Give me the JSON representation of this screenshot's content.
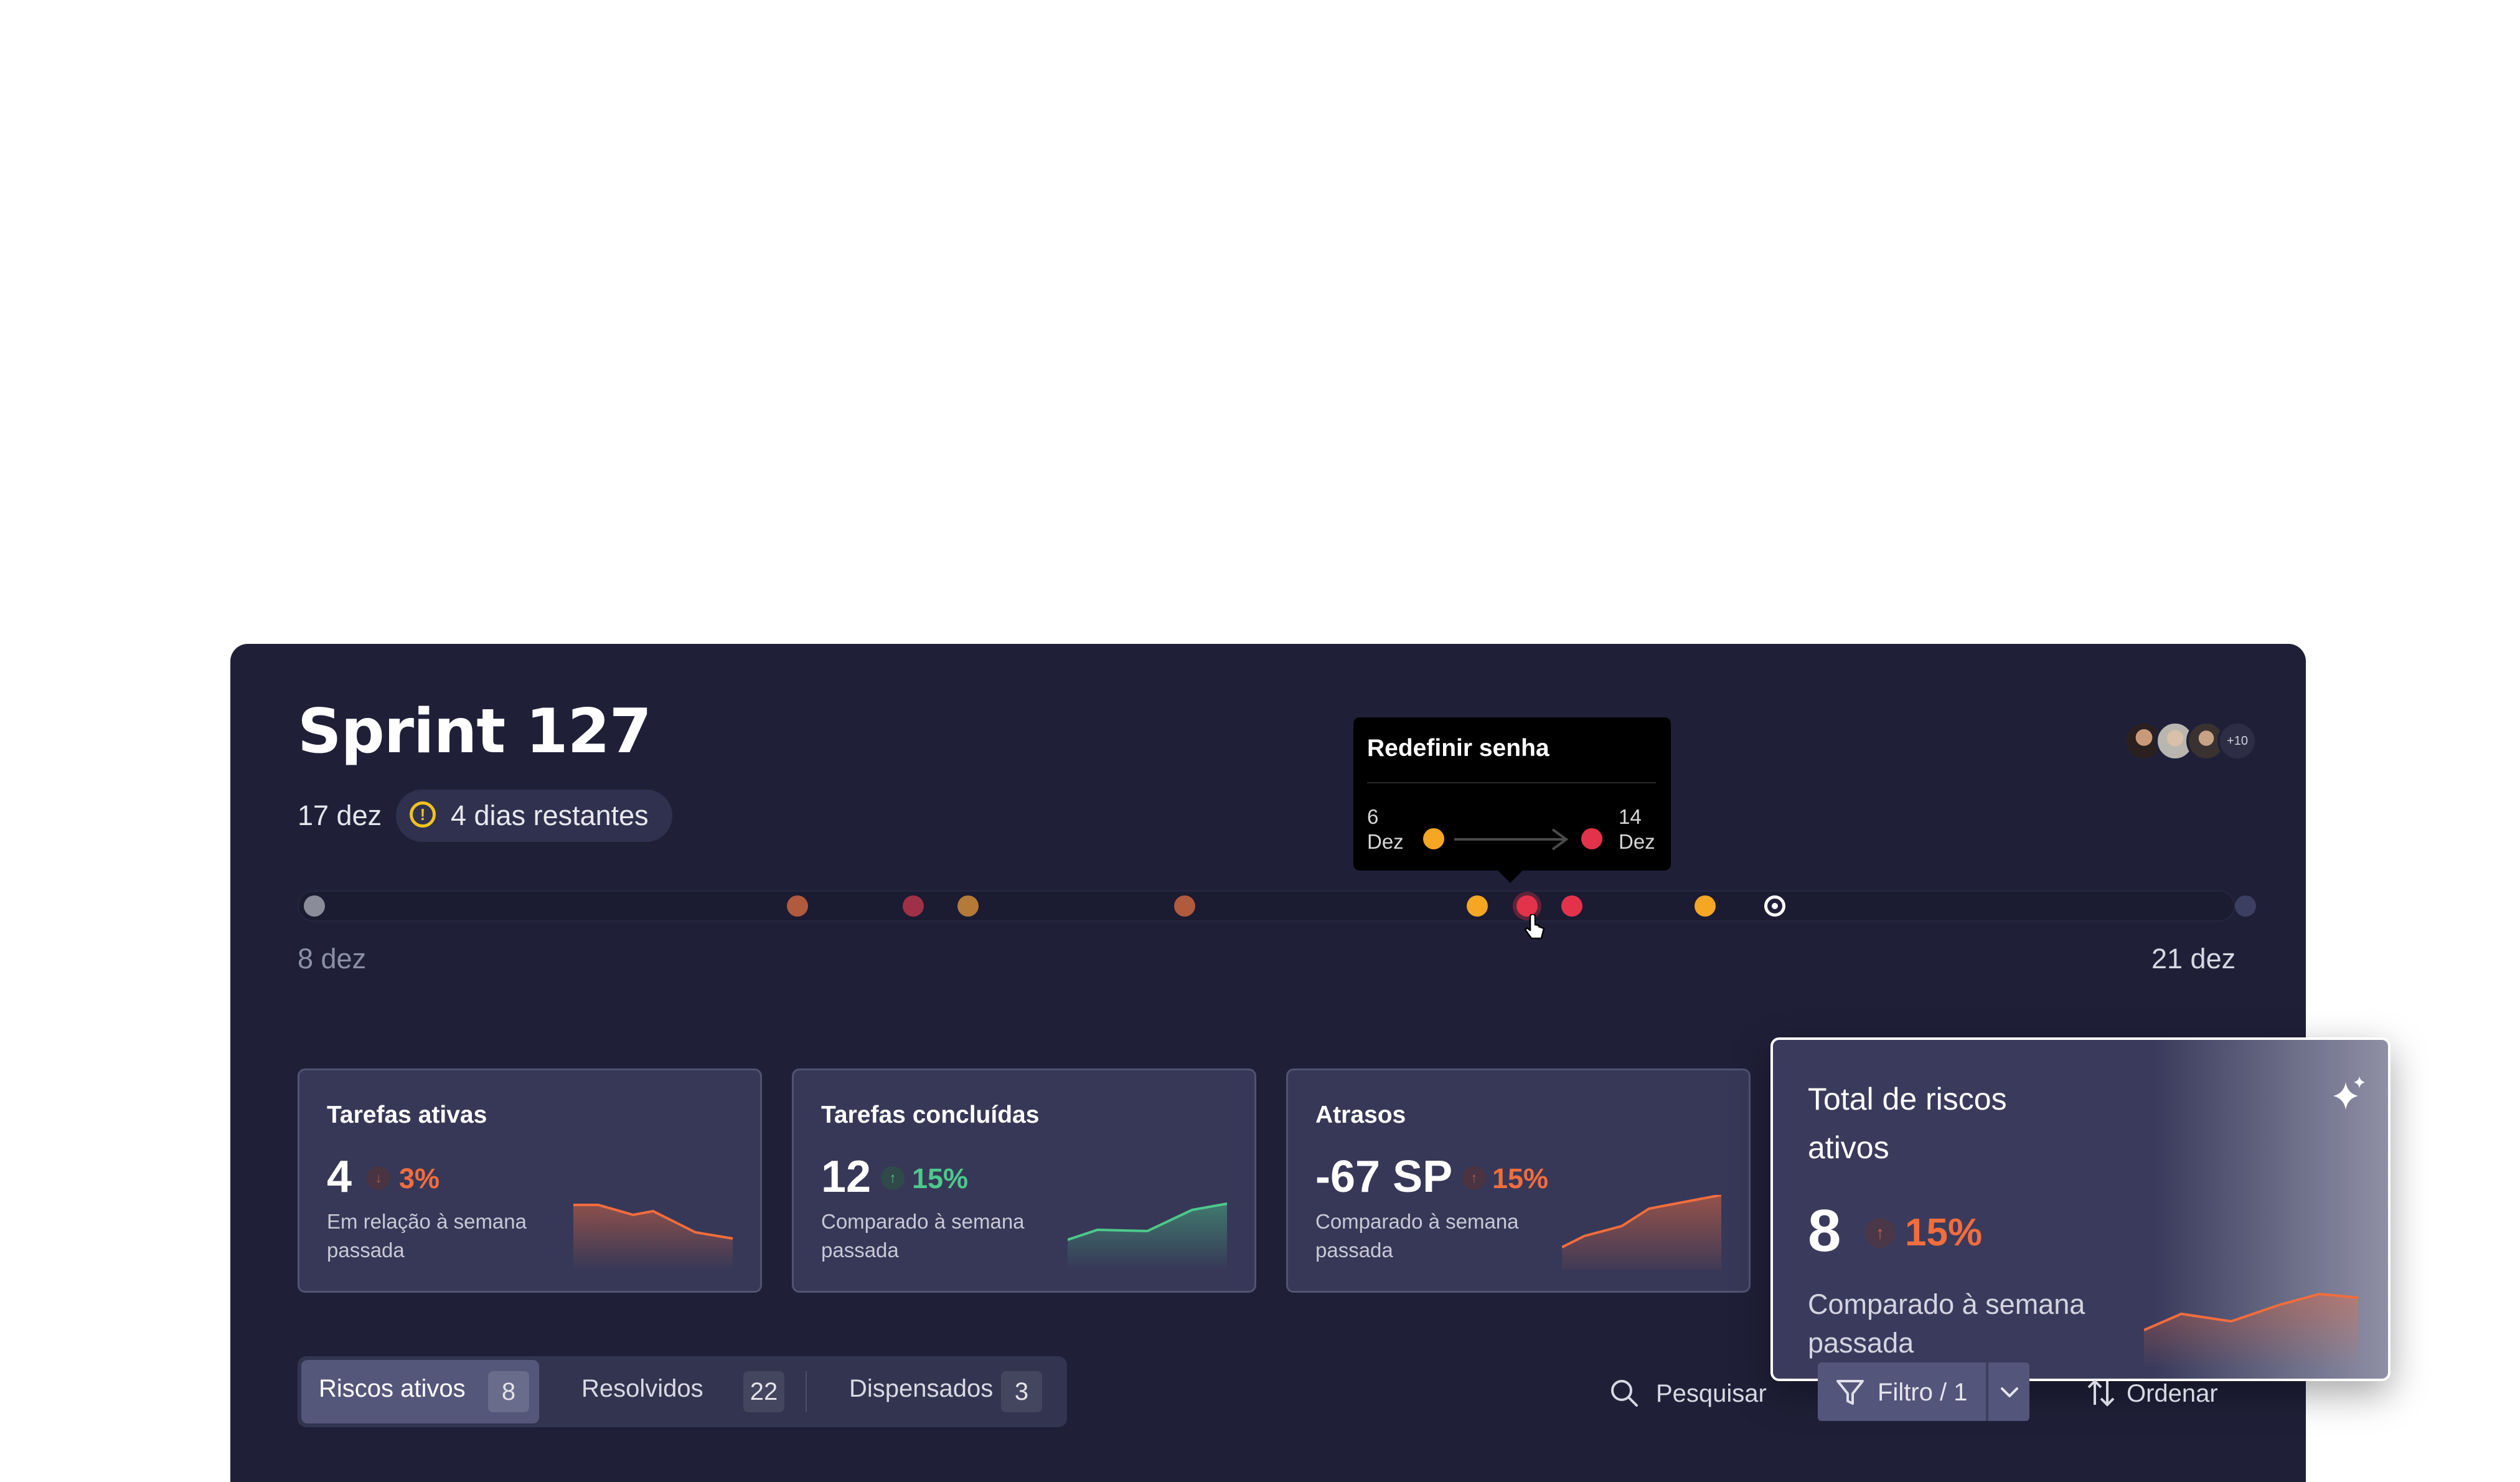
{
  "header": {
    "title": "Sprint 127",
    "date": "17 dez",
    "remaining": "4 dias restantes",
    "avatar_more": "+10"
  },
  "timeline": {
    "start_label": "8 dez",
    "end_label": "21 dez",
    "colors": {
      "gray": "#8b8c99",
      "rust": "#b05a3e",
      "wine": "#9e3148",
      "amber": "#b57a37",
      "orange": "#f5a623",
      "red": "#e2334b",
      "navy": "#3c3e62"
    }
  },
  "tooltip": {
    "title": "Redefinir senha",
    "from_day": "6",
    "from_month": "Dez",
    "to_day": "14",
    "to_month": "Dez"
  },
  "cards": [
    {
      "title": "Tarefas ativas",
      "value": "4",
      "arrow": "↓",
      "pct": "3%",
      "trend": "down",
      "subtitle": "Em relação à semana passada",
      "color": "#f26d3d"
    },
    {
      "title": "Tarefas concluídas",
      "value": "12",
      "arrow": "↑",
      "pct": "15%",
      "trend": "up",
      "subtitle": "Comparado à semana passada",
      "color": "#4cc98a"
    },
    {
      "title": "Atrasos",
      "value": "-67 SP",
      "arrow": "↑",
      "pct": "15%",
      "trend": "up",
      "subtitle": "Comparado à semana passada",
      "color": "#f26d3d"
    }
  ],
  "highlight": {
    "title": "Total de riscos ativos",
    "value": "8",
    "arrow": "↑",
    "pct": "15%",
    "subtitle": "Comparado à semana passada",
    "icon": "sparkle-icon"
  },
  "tabs": [
    {
      "label": "Riscos ativos",
      "count": "8",
      "selected": true
    },
    {
      "label": "Resolvidos",
      "count": "22",
      "selected": false
    },
    {
      "label": "Dispensados",
      "count": "3",
      "selected": false
    }
  ],
  "toolbar": {
    "search_label": "Pesquisar",
    "filter_label": "Filtro / 1",
    "sort_label": "Ordenar"
  }
}
